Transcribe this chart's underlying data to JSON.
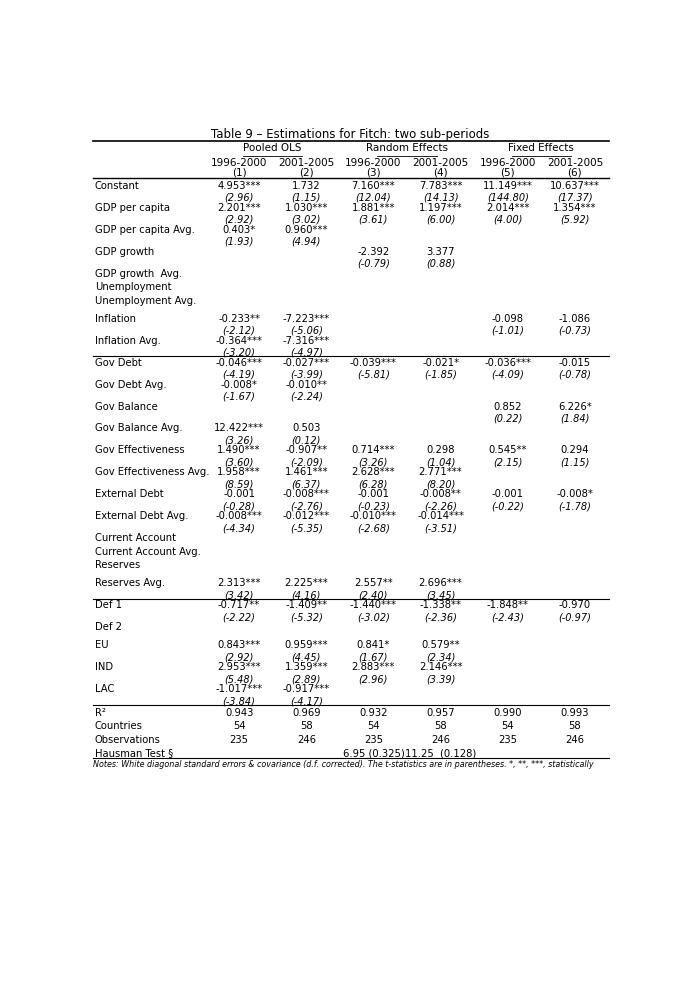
{
  "title": "Table 9 – Estimations for Fitch: two sub-periods",
  "groups": [
    {
      "label": "Pooled OLS",
      "cols": [
        0,
        1
      ]
    },
    {
      "label": "Random Effects",
      "cols": [
        2,
        3
      ]
    },
    {
      "label": "Fixed Effects",
      "cols": [
        4,
        5
      ]
    }
  ],
  "subheaders": [
    "1996-2000\n(1)",
    "2001-2005\n(2)",
    "1996-2000\n(3)",
    "2001-2005\n(4)",
    "1996-2000\n(5)",
    "2001-2005\n(6)"
  ],
  "rows": [
    {
      "label": "Constant",
      "v": [
        "4.953***",
        "1.732",
        "7.160***",
        "7.783***",
        "11.149***",
        "10.637***"
      ],
      "t": [
        "(2.96)",
        "(1.15)",
        "(12.04)",
        "(14.13)",
        "(144.80)",
        "(17.37)"
      ],
      "type": "data"
    },
    {
      "label": "GDP per capita",
      "v": [
        "2.201***",
        "1.030***",
        "1.881***",
        "1.197***",
        "2.014***",
        "1.354***"
      ],
      "t": [
        "(2.92)",
        "(3.02)",
        "(3.61)",
        "(6.00)",
        "(4.00)",
        "(5.92)"
      ],
      "type": "data"
    },
    {
      "label": "GDP per capita Avg.",
      "v": [
        "0.403*",
        "0.960***",
        "",
        "",
        "",
        ""
      ],
      "t": [
        "(1.93)",
        "(4.94)",
        "",
        "",
        "",
        ""
      ],
      "type": "data"
    },
    {
      "label": "GDP growth",
      "v": [
        "",
        "",
        "-2.392",
        "3.377",
        "",
        ""
      ],
      "t": [
        "",
        "",
        "(-0.79)",
        "(0.88)",
        "",
        ""
      ],
      "type": "data"
    },
    {
      "label": "GDP growth  Avg.",
      "v": [
        "",
        "",
        "",
        "",
        "",
        ""
      ],
      "t": [
        "",
        "",
        "",
        "",
        "",
        ""
      ],
      "type": "empty"
    },
    {
      "label": "Unemployment",
      "v": [
        "",
        "",
        "",
        "",
        "",
        ""
      ],
      "t": [
        "",
        "",
        "",
        "",
        "",
        ""
      ],
      "type": "empty"
    },
    {
      "label": "Unemployment Avg.",
      "v": [
        "",
        "",
        "",
        "",
        "",
        ""
      ],
      "t": [
        "",
        "",
        "",
        "",
        "",
        ""
      ],
      "type": "empty"
    },
    {
      "label": "",
      "v": [
        "",
        "",
        "",
        "",
        "",
        ""
      ],
      "t": [
        "",
        "",
        "",
        "",
        "",
        ""
      ],
      "type": "spacer"
    },
    {
      "label": "Inflation",
      "v": [
        "-0.233**",
        "-7.223***",
        "",
        "",
        "-0.098",
        "-1.086"
      ],
      "t": [
        "(-2.12)",
        "(-5.06)",
        "",
        "",
        "(-1.01)",
        "(-0.73)"
      ],
      "type": "data"
    },
    {
      "label": "Inflation Avg.",
      "v": [
        "-0.364***",
        "-7.316***",
        "",
        "",
        "",
        ""
      ],
      "t": [
        "(-3.20)",
        "(-4.97)",
        "",
        "",
        "",
        ""
      ],
      "type": "data",
      "hline_below": true
    },
    {
      "label": "Gov Debt",
      "v": [
        "-0.046***",
        "-0.027***",
        "-0.039***",
        "-0.021*",
        "-0.036***",
        "-0.015"
      ],
      "t": [
        "(-4.19)",
        "(-3.99)",
        "(-5.81)",
        "(-1.85)",
        "(-4.09)",
        "(-0.78)"
      ],
      "type": "data"
    },
    {
      "label": "Gov Debt Avg.",
      "v": [
        "-0.008*",
        "-0.010**",
        "",
        "",
        "",
        ""
      ],
      "t": [
        "(-1.67)",
        "(-2.24)",
        "",
        "",
        "",
        ""
      ],
      "type": "data"
    },
    {
      "label": "Gov Balance",
      "v": [
        "",
        "",
        "",
        "",
        "0.852",
        "6.226*"
      ],
      "t": [
        "",
        "",
        "",
        "",
        "(0.22)",
        "(1.84)"
      ],
      "type": "data"
    },
    {
      "label": "Gov Balance Avg.",
      "v": [
        "12.422***",
        "0.503",
        "",
        "",
        "",
        ""
      ],
      "t": [
        "(3.26)",
        "(0.12)",
        "",
        "",
        "",
        ""
      ],
      "type": "data"
    },
    {
      "label": "Gov Effectiveness",
      "v": [
        "1.490***",
        "-0.907**",
        "0.714***",
        "0.298",
        "0.545**",
        "0.294"
      ],
      "t": [
        "(3.60)",
        "(-2.09)",
        "(3.26)",
        "(1.04)",
        "(2.15)",
        "(1.15)"
      ],
      "type": "data"
    },
    {
      "label": "Gov Effectiveness Avg.",
      "v": [
        "1.958***",
        "1.461***",
        "2.628***",
        "2.771***",
        "",
        ""
      ],
      "t": [
        "(8.59)",
        "(6.37)",
        "(6.28)",
        "(8.20)",
        "",
        ""
      ],
      "type": "data"
    },
    {
      "label": "External Debt",
      "v": [
        "-0.001",
        "-0.008***",
        "-0.001",
        "-0.008**",
        "-0.001",
        "-0.008*"
      ],
      "t": [
        "(-0.28)",
        "(-2.76)",
        "(-0.23)",
        "(-2.26)",
        "(-0.22)",
        "(-1.78)"
      ],
      "type": "data"
    },
    {
      "label": "External Debt Avg.",
      "v": [
        "-0.008***",
        "-0.012***",
        "-0.010***",
        "-0.014***",
        "",
        ""
      ],
      "t": [
        "(-4.34)",
        "(-5.35)",
        "(-2.68)",
        "(-3.51)",
        "",
        ""
      ],
      "type": "data"
    },
    {
      "label": "Current Account",
      "v": [
        "",
        "",
        "",
        "",
        "",
        ""
      ],
      "t": [
        "",
        "",
        "",
        "",
        "",
        ""
      ],
      "type": "empty"
    },
    {
      "label": "Current Account Avg.",
      "v": [
        "",
        "",
        "",
        "",
        "",
        ""
      ],
      "t": [
        "",
        "",
        "",
        "",
        "",
        ""
      ],
      "type": "empty"
    },
    {
      "label": "Reserves",
      "v": [
        "",
        "",
        "",
        "",
        "",
        ""
      ],
      "t": [
        "",
        "",
        "",
        "",
        "",
        ""
      ],
      "type": "empty"
    },
    {
      "label": "",
      "v": [
        "",
        "",
        "",
        "",
        "",
        ""
      ],
      "t": [
        "",
        "",
        "",
        "",
        "",
        ""
      ],
      "type": "spacer"
    },
    {
      "label": "Reserves Avg.",
      "v": [
        "2.313***",
        "2.225***",
        "2.557**",
        "2.696***",
        "",
        ""
      ],
      "t": [
        "(3.42)",
        "(4.16)",
        "(2.40)",
        "(3.45)",
        "",
        ""
      ],
      "type": "data",
      "hline_below": true
    },
    {
      "label": "Def 1",
      "v": [
        "-0.717**",
        "-1.409**",
        "-1.440***",
        "-1.338**",
        "-1.848**",
        "-0.970"
      ],
      "t": [
        "(-2.22)",
        "(-5.32)",
        "(-3.02)",
        "(-2.36)",
        "(-2.43)",
        "(-0.97)"
      ],
      "type": "data"
    },
    {
      "label": "Def 2",
      "v": [
        "",
        "",
        "",
        "",
        "",
        ""
      ],
      "t": [
        "",
        "",
        "",
        "",
        "",
        ""
      ],
      "type": "empty"
    },
    {
      "label": "",
      "v": [
        "",
        "",
        "",
        "",
        "",
        ""
      ],
      "t": [
        "",
        "",
        "",
        "",
        "",
        ""
      ],
      "type": "spacer"
    },
    {
      "label": "EU",
      "v": [
        "0.843***",
        "0.959***",
        "0.841*",
        "0.579**",
        "",
        ""
      ],
      "t": [
        "(2.92)",
        "(4.45)",
        "(1.67)",
        "(2.34)",
        "",
        ""
      ],
      "type": "data"
    },
    {
      "label": "IND",
      "v": [
        "2.953***",
        "1.359***",
        "2.883***",
        "2.146***",
        "",
        ""
      ],
      "t": [
        "(5.48)",
        "(2.89)",
        "(2.96)",
        "(3.39)",
        "",
        ""
      ],
      "type": "data"
    },
    {
      "label": "LAC",
      "v": [
        "-1.017***",
        "-0.917***",
        "",
        "",
        "",
        ""
      ],
      "t": [
        "(-3.84)",
        "(-4.17)",
        "",
        "",
        "",
        ""
      ],
      "type": "data"
    }
  ],
  "bottom_rows": [
    {
      "label": "R²",
      "vals": [
        "0.943",
        "0.969",
        "0.932",
        "0.957",
        "0.990",
        "0.993"
      ]
    },
    {
      "label": "Countries",
      "vals": [
        "54",
        "58",
        "54",
        "58",
        "54",
        "58"
      ]
    },
    {
      "label": "Observations",
      "vals": [
        "235",
        "246",
        "235",
        "246",
        "235",
        "246"
      ]
    },
    {
      "label": "Hausman Test §",
      "vals": [
        "",
        "",
        "6.95 (0.325)",
        "11.25  (0.128)",
        "",
        ""
      ]
    }
  ],
  "footnote": "Notes: White diagonal standard errors & covariance (d.f. corrected). The t-statistics are in parentheses. *, **, ***, statistically"
}
